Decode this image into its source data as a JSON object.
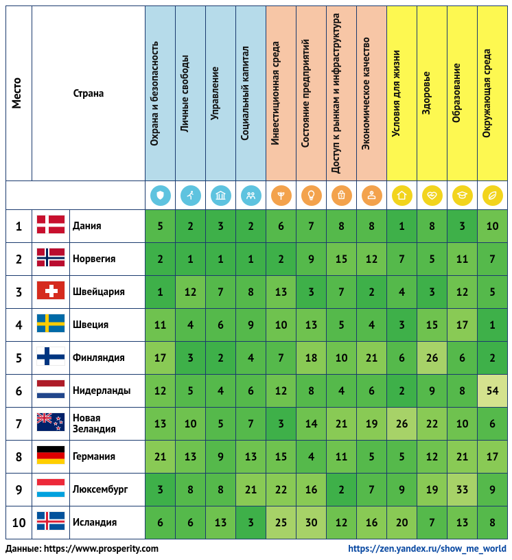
{
  "header": {
    "rank_label": "Место",
    "country_label": "Страна"
  },
  "categories": [
    {
      "label": "Охрана и безопасность",
      "header_bg": "#b6dbea",
      "icon_bg": "#5ec3df",
      "glyph": "shield"
    },
    {
      "label": "Личные свободы",
      "header_bg": "#b6dbea",
      "icon_bg": "#5ec3df",
      "glyph": "run"
    },
    {
      "label": "Управление",
      "header_bg": "#b6dbea",
      "icon_bg": "#5ec3df",
      "glyph": "bank"
    },
    {
      "label": "Социальный капитал",
      "header_bg": "#b6dbea",
      "icon_bg": "#5ec3df",
      "glyph": "people"
    },
    {
      "label": "Инвестиционная среда",
      "header_bg": "#f7c6a6",
      "icon_bg": "#f3a24c",
      "glyph": "sprout"
    },
    {
      "label": "Состояние предприятий",
      "header_bg": "#f7c6a6",
      "icon_bg": "#f3a24c",
      "glyph": "bulb"
    },
    {
      "label": "Доступ к рынкам и инфраструктура",
      "header_bg": "#f7c6a6",
      "icon_bg": "#f3a24c",
      "glyph": "bag"
    },
    {
      "label": "Экономическое качество",
      "header_bg": "#f7c6a6",
      "icon_bg": "#f3a24c",
      "glyph": "hand"
    },
    {
      "label": "Условия для жизни",
      "header_bg": "#fdf851",
      "icon_bg": "#f2d41d",
      "glyph": "home"
    },
    {
      "label": "Здоровье",
      "header_bg": "#fdf851",
      "icon_bg": "#f2d41d",
      "glyph": "heart"
    },
    {
      "label": "Образование",
      "header_bg": "#fdf851",
      "icon_bg": "#f2d41d",
      "glyph": "cap"
    },
    {
      "label": "Окружающая среда",
      "header_bg": "#fdf851",
      "icon_bg": "#f2d41d",
      "glyph": "leaf"
    }
  ],
  "rows": [
    {
      "rank": 1,
      "flag": "dk",
      "country": "Дания",
      "values": [
        5,
        2,
        3,
        2,
        6,
        7,
        8,
        8,
        1,
        8,
        3,
        10
      ]
    },
    {
      "rank": 2,
      "flag": "no",
      "country": "Норвегия",
      "values": [
        2,
        1,
        1,
        1,
        2,
        9,
        15,
        12,
        7,
        5,
        11,
        7
      ]
    },
    {
      "rank": 3,
      "flag": "ch",
      "country": "Швейцария",
      "values": [
        1,
        12,
        7,
        8,
        13,
        3,
        7,
        2,
        4,
        3,
        12,
        5
      ]
    },
    {
      "rank": 4,
      "flag": "se",
      "country": "Швеция",
      "values": [
        11,
        4,
        6,
        9,
        10,
        13,
        5,
        4,
        3,
        15,
        17,
        1
      ]
    },
    {
      "rank": 5,
      "flag": "fi",
      "country": "Финляндия",
      "values": [
        17,
        3,
        2,
        4,
        7,
        18,
        10,
        21,
        6,
        26,
        6,
        2
      ]
    },
    {
      "rank": 6,
      "flag": "nl",
      "country": "Нидерланды",
      "values": [
        12,
        5,
        4,
        6,
        12,
        8,
        4,
        6,
        2,
        9,
        8,
        54
      ]
    },
    {
      "rank": 7,
      "flag": "nz",
      "country": "Новая Зеландия",
      "values": [
        13,
        10,
        5,
        7,
        3,
        14,
        21,
        19,
        26,
        22,
        10,
        6
      ]
    },
    {
      "rank": 8,
      "flag": "de",
      "country": "Германия",
      "values": [
        21,
        13,
        9,
        13,
        15,
        4,
        11,
        5,
        5,
        12,
        21,
        17
      ]
    },
    {
      "rank": 9,
      "flag": "lu",
      "country": "Люксембург",
      "values": [
        3,
        8,
        8,
        21,
        22,
        16,
        2,
        7,
        9,
        19,
        33,
        9
      ]
    },
    {
      "rank": 10,
      "flag": "is",
      "country": "Исландия",
      "values": [
        6,
        6,
        13,
        3,
        25,
        30,
        12,
        16,
        20,
        7,
        13,
        8
      ]
    }
  ],
  "cell_colors": {
    "thresholds": [
      3,
      9,
      15,
      24,
      40
    ],
    "palette": [
      "#3eb049",
      "#55b94b",
      "#6fc24f",
      "#89ca55",
      "#a7d268",
      "#d4e28e"
    ]
  },
  "footer": {
    "source_label": "Данные: https://www.prosperity.com",
    "link_label": "https://zen.yandex.ru/show_me_world"
  },
  "border_color": "#1a3a6e"
}
